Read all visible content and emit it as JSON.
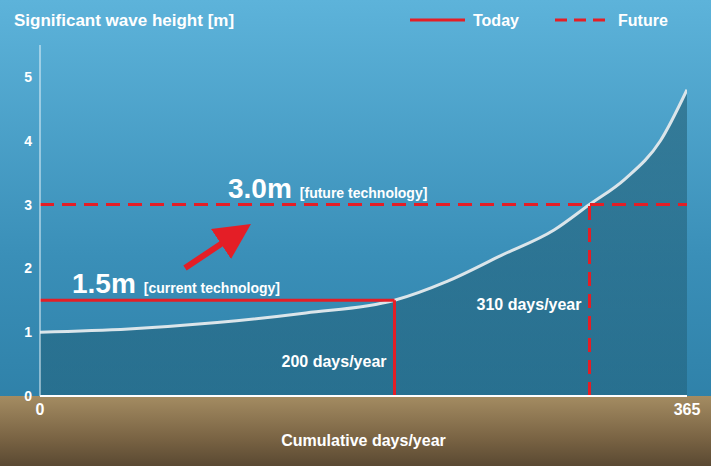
{
  "chart_data": {
    "type": "area",
    "title": "Significant wave height [m]",
    "x_label": "Cumulative days/year",
    "x": [
      0,
      50,
      100,
      150,
      200,
      230,
      260,
      290,
      310,
      330,
      350,
      365
    ],
    "values": [
      1.0,
      1.05,
      1.15,
      1.3,
      1.5,
      1.8,
      2.2,
      2.6,
      3.0,
      3.4,
      4.0,
      4.8
    ],
    "color": "#1f5a70",
    "xlim": [
      0,
      365
    ],
    "xticks": [
      0,
      365
    ],
    "ylim": [
      0,
      5.5
    ],
    "yticks": [
      0,
      1,
      2,
      3,
      4,
      5
    ],
    "grid": false,
    "legend": "top-right",
    "thresholds": [
      {
        "name": "Today",
        "line_style": "solid",
        "color": "#e41e26",
        "height": 1.5,
        "days": 200,
        "height_label": "1.5m",
        "technology": "[current technology]",
        "days_label": "200 days/year"
      },
      {
        "name": "Future",
        "line_style": "dashed",
        "color": "#e41e26",
        "height": 3.0,
        "days": 310,
        "height_label": "3.0m",
        "technology": "[future technology]",
        "days_label": "310 days/year"
      }
    ]
  }
}
